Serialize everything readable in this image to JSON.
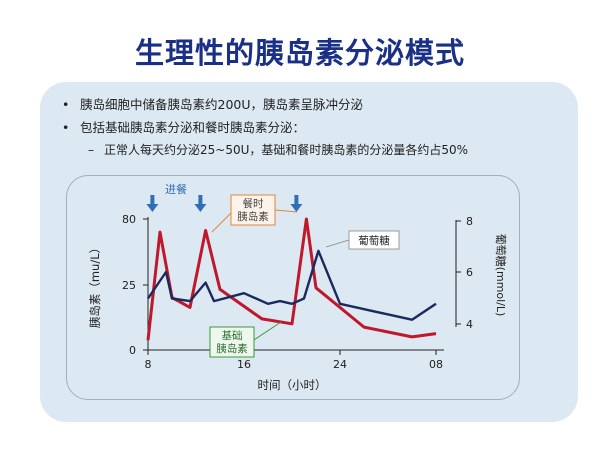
{
  "title": "生理性的胰岛素分泌模式",
  "bullets": [
    "胰岛细胞中储备胰岛素约200U，胰岛素呈脉冲分泌",
    "包括基础胰岛素分泌和餐时胰岛素分泌："
  ],
  "sub_bullet": "正常人每天约分泌25~50U，基础和餐时胰岛素的分泌量各约占50%",
  "colors": {
    "insulin": "#c0182b",
    "glucose": "#1b2a5c",
    "arrow": "#2f6fb8",
    "title": "#1a2f86",
    "label_orange": "#e0883a",
    "label_green": "#3a9a3a"
  },
  "chart_data": {
    "type": "line",
    "title": "",
    "xlabel": "时间（小时）",
    "ylabel_left": "胰岛素（mu/L）",
    "ylabel_right": "葡萄糖(mmol/L)",
    "x_ticks": [
      "8",
      "16",
      "24",
      "08"
    ],
    "x_range": [
      8,
      32
    ],
    "y_left_ticks": [
      "80",
      "25",
      "0"
    ],
    "y_left_range": [
      0,
      80
    ],
    "y_right_ticks": [
      "8",
      "6",
      "4"
    ],
    "y_right_range": [
      3.8,
      8
    ],
    "meal_label": "进餐",
    "meal_times": [
      8.2,
      12.2,
      20.2
    ],
    "annotations": {
      "meal_insulin": "餐时\n胰岛素",
      "basal_insulin": "基础\n胰岛素",
      "glucose": "葡萄糖"
    },
    "series": [
      {
        "name": "胰岛素",
        "axis": "left",
        "x": [
          8.0,
          9.0,
          10.0,
          11.5,
          12.8,
          14.0,
          17.5,
          20.0,
          21.2,
          22.0,
          26.0,
          30.0,
          32.0
        ],
        "y": [
          6,
          72,
          32,
          26,
          73,
          37,
          19,
          16,
          80,
          38,
          14,
          8,
          10
        ]
      },
      {
        "name": "葡萄糖",
        "axis": "right",
        "x": [
          8.0,
          9.5,
          10.0,
          11.5,
          12.8,
          13.5,
          16.0,
          18.0,
          19.0,
          20.0,
          21.0,
          22.2,
          24.0,
          27.0,
          30.0,
          32.0
        ],
        "y": [
          5.0,
          6.0,
          5.0,
          4.9,
          5.6,
          4.9,
          5.2,
          4.8,
          4.9,
          4.8,
          5.0,
          6.8,
          4.8,
          4.5,
          4.2,
          4.8
        ]
      }
    ]
  }
}
